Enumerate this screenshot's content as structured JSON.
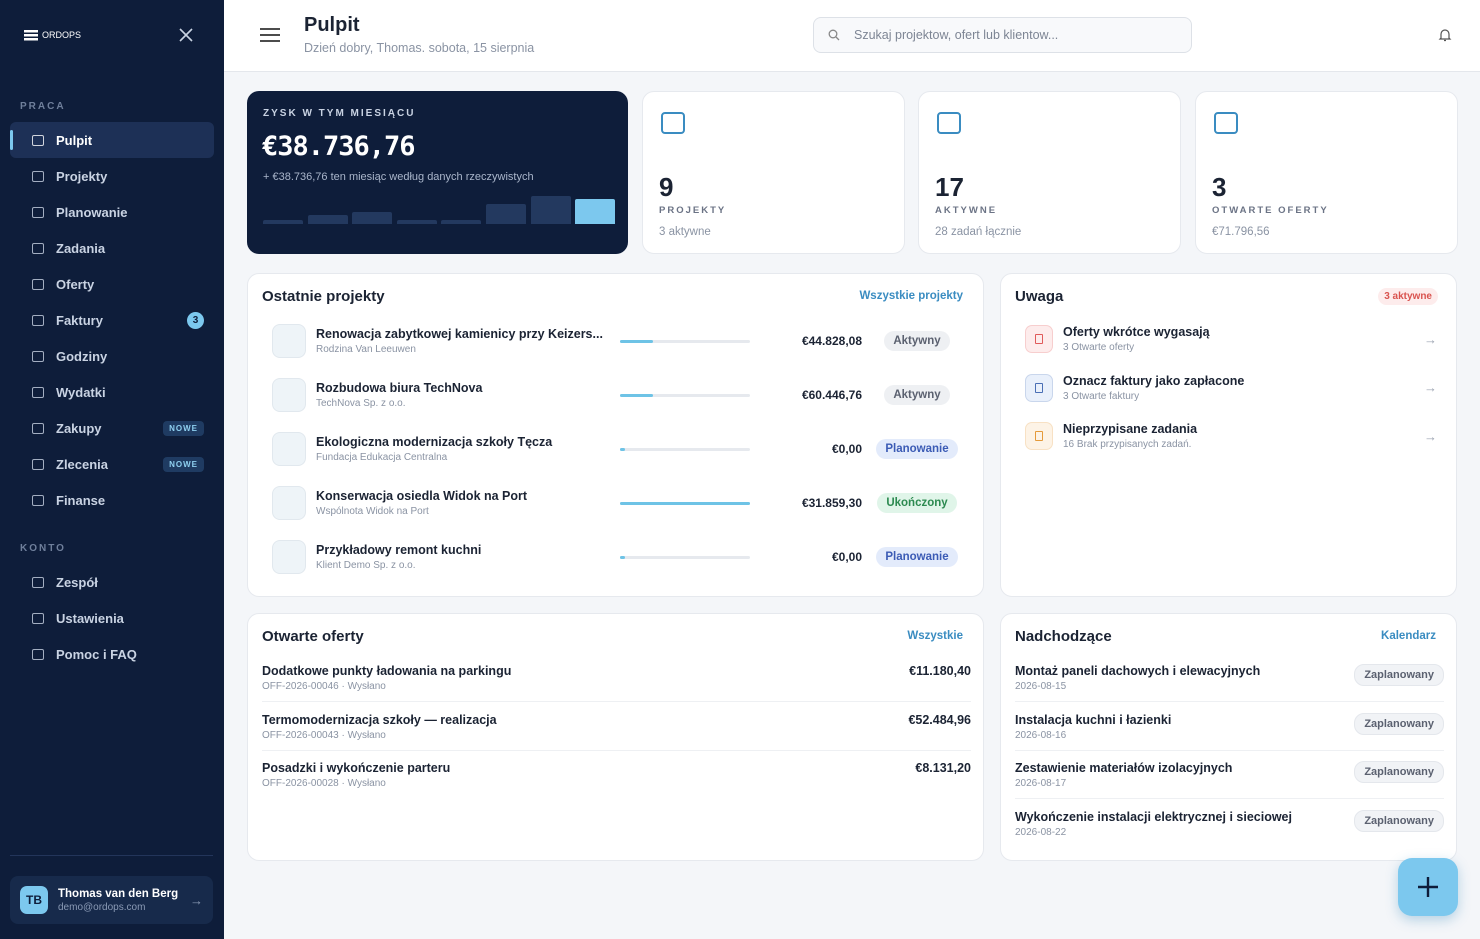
{
  "sidebar": {
    "logo": "ORDOPS",
    "sections": [
      {
        "title": "PRACA",
        "items": [
          {
            "label": "Pulpit",
            "active": true
          },
          {
            "label": "Projekty"
          },
          {
            "label": "Planowanie"
          },
          {
            "label": "Zadania"
          },
          {
            "label": "Oferty"
          },
          {
            "label": "Faktury",
            "badge": "3"
          },
          {
            "label": "Godziny"
          },
          {
            "label": "Wydatki"
          },
          {
            "label": "Zakupy",
            "badge": "NOWE"
          },
          {
            "label": "Zlecenia",
            "badge": "NOWE"
          },
          {
            "label": "Finanse"
          }
        ]
      },
      {
        "title": "KONTO",
        "items": [
          {
            "label": "Zespół"
          },
          {
            "label": "Ustawienia"
          },
          {
            "label": "Pomoc i FAQ"
          }
        ]
      }
    ],
    "user": {
      "initials": "TB",
      "name": "Thomas van den Berg",
      "email": "demo@ordops.com"
    }
  },
  "header": {
    "title": "Pulpit",
    "subtitle": "Dzień dobry, Thomas. sobota, 15 sierpnia",
    "search": "Szukaj projektow, ofert lub klientow..."
  },
  "profit": {
    "label": "ZYSK W TYM MIESIĄCU",
    "value": "€38.736,76",
    "note": "+ €38.736,76 ten miesiąc według danych rzeczywistych",
    "trend": [
      4,
      9,
      12,
      4,
      4,
      20,
      28,
      25
    ]
  },
  "cards": [
    {
      "value": 9,
      "label": "PROJEKTY",
      "note": "3 aktywne"
    },
    {
      "value": 17,
      "label": "AKTYWNE",
      "note": "28 zadań łącznie"
    },
    {
      "value": 3,
      "label": "OTWARTE OFERTY",
      "note": "€71.796,56"
    }
  ],
  "recent_projects": {
    "title": "Ostatnie projekty",
    "link": "Wszystkie projekty",
    "rows": [
      {
        "name": "Renowacja zabytkowej kamienicy przy Keizers...",
        "client": "Rodzina Van Leeuwen",
        "progress": 25,
        "amount": "€44.828,08",
        "status": "Aktywny",
        "status_color": "#5b6170",
        "status_bg": "#eef0f3"
      },
      {
        "name": "Rozbudowa biura TechNova",
        "client": "TechNova Sp. z o.o.",
        "progress": 25,
        "amount": "€60.446,76",
        "status": "Aktywny",
        "status_color": "#5b6170",
        "status_bg": "#eef0f3"
      },
      {
        "name": "Ekologiczna modernizacja szkoły Tęcza",
        "client": "Fundacja Edukacja Centralna",
        "progress": 4,
        "amount": "€0,00",
        "status": "Planowanie",
        "status_color": "#3b5bb5",
        "status_bg": "#e3ebfb"
      },
      {
        "name": "Konserwacja osiedla Widok na Port",
        "client": "Wspólnota Widok na Port",
        "progress": 100,
        "amount": "€31.859,30",
        "status": "Ukończony",
        "status_color": "#2c8a50",
        "status_bg": "#e0f5e9"
      },
      {
        "name": "Przykładowy remont kuchni",
        "client": "Klient Demo Sp. z o.o.",
        "progress": 4,
        "amount": "€0,00",
        "status": "Planowanie",
        "status_color": "#3b5bb5",
        "status_bg": "#e3ebfb"
      }
    ]
  },
  "attention": {
    "title": "Uwaga",
    "badge": "3 aktywne",
    "items": [
      {
        "title": "Oferty wkrótce wygasają",
        "sub": "3 Otwarte oferty",
        "color": "#e05a5a",
        "bg": "#fdecec"
      },
      {
        "title": "Oznacz faktury jako zapłacone",
        "sub": "3 Otwarte faktury",
        "color": "#4a6fb5",
        "bg": "#e9f0fb"
      },
      {
        "title": "Nieprzypisane zadania",
        "sub": "16 Brak przypisanych zadań.",
        "color": "#e59a3a",
        "bg": "#fdf3e6"
      }
    ]
  },
  "offers": {
    "title": "Otwarte oferty",
    "link": "Wszystkie",
    "rows": [
      {
        "name": "Dodatkowe punkty ładowania na parkingu",
        "meta": "OFF-2026-00046 · Wysłano",
        "amount": "€11.180,40"
      },
      {
        "name": "Termomodernizacja szkoły — realizacja",
        "meta": "OFF-2026-00043 · Wysłano",
        "amount": "€52.484,96"
      },
      {
        "name": "Posadzki i wykończenie parteru",
        "meta": "OFF-2026-00028 · Wysłano",
        "amount": "€8.131,20"
      }
    ]
  },
  "upcoming": {
    "title": "Nadchodzące",
    "link": "Kalendarz",
    "rows": [
      {
        "name": "Montaż paneli dachowych i elewacyjnych",
        "date": "2026-08-15",
        "status": "Zaplanowany"
      },
      {
        "name": "Instalacja kuchni i łazienki",
        "date": "2026-08-16",
        "status": "Zaplanowany"
      },
      {
        "name": "Zestawienie materiałów izolacyjnych",
        "date": "2026-08-17",
        "status": "Zaplanowany"
      },
      {
        "name": "Wykończenie instalacji elektrycznej i sieciowej",
        "date": "2026-08-22",
        "status": "Zaplanowany"
      }
    ]
  }
}
